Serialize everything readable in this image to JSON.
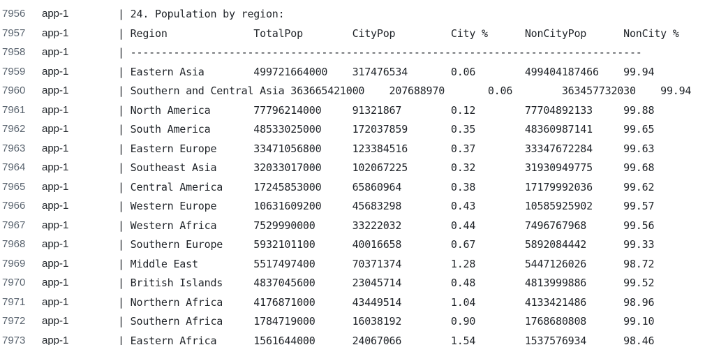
{
  "log": {
    "lines": [
      {
        "num": "7956",
        "source": "app-1",
        "message": "| 24. Population by region:"
      },
      {
        "num": "7957",
        "source": "app-1",
        "message": "| Region              TotalPop        CityPop         City %      NonCityPop      NonCity %"
      },
      {
        "num": "7958",
        "source": "app-1",
        "message": "| -----------------------------------------------------------------------------------"
      },
      {
        "num": "7959",
        "source": "app-1",
        "message": "| Eastern Asia        499721664000    317476534       0.06        499404187466    99.94"
      },
      {
        "num": "7960",
        "source": "app-1",
        "message": "| Southern and Central Asia 363665421000    207688970       0.06        363457732030    99.94"
      },
      {
        "num": "7961",
        "source": "app-1",
        "message": "| North America       77796214000     91321867        0.12        77704892133     99.88"
      },
      {
        "num": "7962",
        "source": "app-1",
        "message": "| South America       48533025000     172037859       0.35        48360987141     99.65"
      },
      {
        "num": "7963",
        "source": "app-1",
        "message": "| Eastern Europe      33471056800     123384516       0.37        33347672284     99.63"
      },
      {
        "num": "7964",
        "source": "app-1",
        "message": "| Southeast Asia      32033017000     102067225       0.32        31930949775     99.68"
      },
      {
        "num": "7965",
        "source": "app-1",
        "message": "| Central America     17245853000     65860964        0.38        17179992036     99.62"
      },
      {
        "num": "7966",
        "source": "app-1",
        "message": "| Western Europe      10631609200     45683298        0.43        10585925902     99.57"
      },
      {
        "num": "7967",
        "source": "app-1",
        "message": "| Western Africa      7529990000      33222032        0.44        7496767968      99.56"
      },
      {
        "num": "7968",
        "source": "app-1",
        "message": "| Southern Europe     5932101100      40016658        0.67        5892084442      99.33"
      },
      {
        "num": "7969",
        "source": "app-1",
        "message": "| Middle East         5517497400      70371374        1.28        5447126026      98.72"
      },
      {
        "num": "7970",
        "source": "app-1",
        "message": "| British Islands     4837045600      23045714        0.48        4813999886      99.52"
      },
      {
        "num": "7971",
        "source": "app-1",
        "message": "| Northern Africa     4176871000      43449514        1.04        4133421486      98.96"
      },
      {
        "num": "7972",
        "source": "app-1",
        "message": "| Southern Africa     1784719000      16038192        0.90        1768680808      99.10"
      },
      {
        "num": "7973",
        "source": "app-1",
        "message": "| Eastern Africa      1561644000      24067066        1.54        1537576934      98.46"
      }
    ]
  }
}
